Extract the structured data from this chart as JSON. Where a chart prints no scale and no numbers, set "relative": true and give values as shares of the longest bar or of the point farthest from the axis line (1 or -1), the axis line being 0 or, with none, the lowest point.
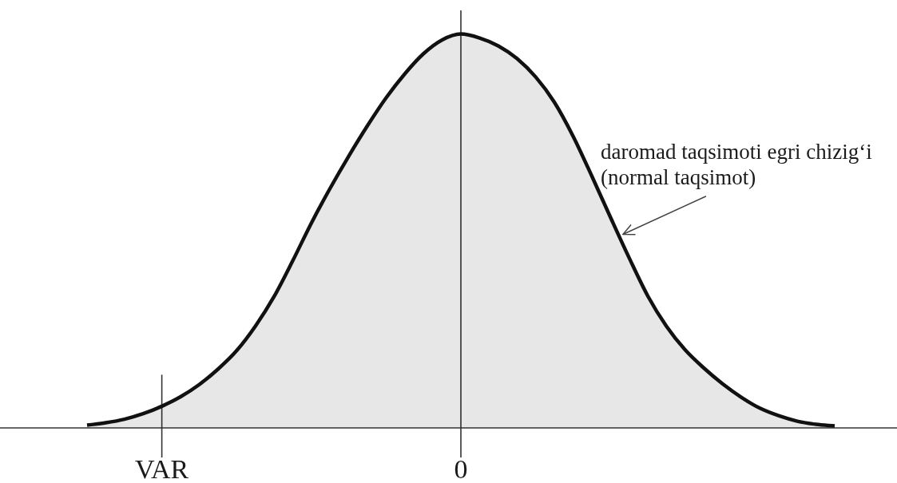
{
  "chart_data": {
    "type": "area",
    "relative": true,
    "color": "#111111",
    "categories": [
      null,
      null,
      null,
      null,
      "VAR",
      null,
      null,
      null,
      null,
      null,
      null,
      null,
      null,
      null,
      null,
      null,
      null,
      null,
      null,
      null,
      "0",
      null,
      null,
      null,
      null,
      null,
      null,
      null,
      null,
      null,
      null,
      null,
      null,
      null,
      null,
      null,
      null,
      null,
      null,
      null,
      null
    ],
    "values": [
      0.007,
      0.013,
      0.022,
      0.036,
      0.055,
      0.079,
      0.11,
      0.149,
      0.196,
      0.258,
      0.333,
      0.424,
      0.52,
      0.608,
      0.69,
      0.767,
      0.838,
      0.899,
      0.95,
      0.985,
      1,
      0.99,
      0.97,
      0.938,
      0.891,
      0.827,
      0.741,
      0.64,
      0.535,
      0.432,
      0.335,
      0.258,
      0.198,
      0.152,
      0.112,
      0.078,
      0.05,
      0.031,
      0.017,
      0.009,
      0.005
    ],
    "ref_lines": [
      {
        "axis": "x",
        "value": "VAR"
      },
      {
        "axis": "x",
        "value": "0"
      }
    ],
    "annotations": [
      "daromad taqsimoti egri chizig‘i\n(normal taqsimot)"
    ]
  }
}
